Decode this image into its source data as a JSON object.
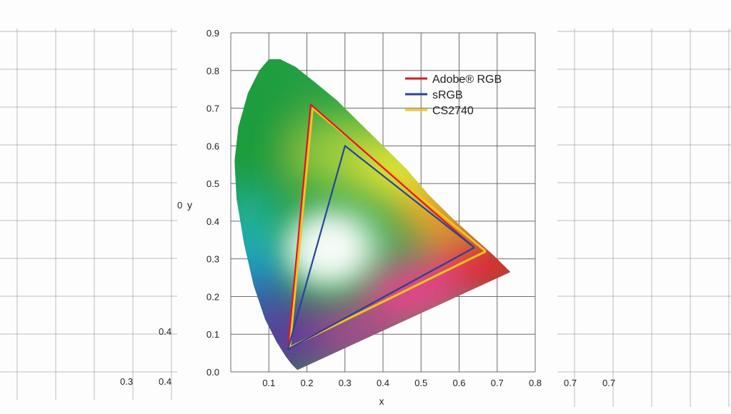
{
  "chart_data": {
    "type": "line",
    "title": "",
    "xlabel": "x",
    "ylabel": "y",
    "xlim": [
      0,
      0.8
    ],
    "ylim": [
      0,
      0.9
    ],
    "x_ticks": [
      "0.1",
      "0.2",
      "0.3",
      "0.4",
      "0.5",
      "0.6",
      "0.7",
      "0.8"
    ],
    "y_ticks": [
      "0.0",
      "0.1",
      "0.2",
      "0.3",
      "0.4",
      "0.5",
      "0.6",
      "0.7",
      "0.8",
      "0.9"
    ],
    "grid": true,
    "legend_position": "top-right",
    "spectral_locus": {
      "x": [
        0.175,
        0.16,
        0.145,
        0.12,
        0.09,
        0.06,
        0.035,
        0.015,
        0.01,
        0.02,
        0.045,
        0.075,
        0.1,
        0.13,
        0.17,
        0.22,
        0.28,
        0.34,
        0.4,
        0.46,
        0.52,
        0.58,
        0.64,
        0.69,
        0.735
      ],
      "y": [
        0.005,
        0.02,
        0.04,
        0.08,
        0.14,
        0.23,
        0.34,
        0.46,
        0.56,
        0.65,
        0.74,
        0.8,
        0.83,
        0.83,
        0.81,
        0.77,
        0.72,
        0.66,
        0.6,
        0.54,
        0.47,
        0.41,
        0.355,
        0.31,
        0.265
      ]
    },
    "series": [
      {
        "name": "Adobe® RGB",
        "color": "#d7192b",
        "x": [
          0.64,
          0.21,
          0.15,
          0.64
        ],
        "y": [
          0.33,
          0.71,
          0.06,
          0.33
        ]
      },
      {
        "name": "sRGB",
        "color": "#27449b",
        "x": [
          0.64,
          0.3,
          0.15,
          0.64
        ],
        "y": [
          0.33,
          0.6,
          0.06,
          0.33
        ]
      },
      {
        "name": "CS2740",
        "color": "#f3c31b",
        "x": [
          0.67,
          0.215,
          0.155,
          0.67
        ],
        "y": [
          0.32,
          0.7,
          0.065,
          0.32
        ]
      }
    ]
  },
  "background_labels": {
    "left_y_value": "0.4",
    "left_x_ticks": [
      "0.3",
      "0.4"
    ],
    "left_axis_fragment": "0",
    "right_x_ticks": [
      "0.7",
      "0.7"
    ]
  }
}
